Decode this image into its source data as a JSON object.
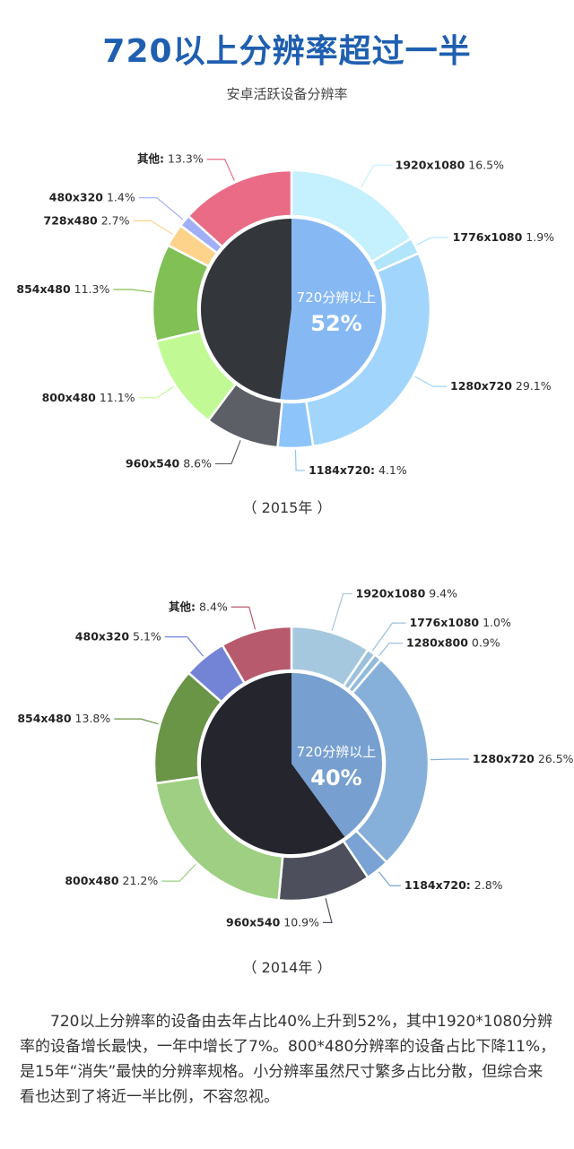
{
  "header": {
    "title": "720以上分辨率超过一半",
    "subtitle": "安卓活跃设备分辨率"
  },
  "chart_data": [
    {
      "type": "pie",
      "caption": "（ 2015年 ）",
      "inner_label": "720分辨以上",
      "inner_value": "52%",
      "inner_share": 52,
      "slices": [
        {
          "name": "1920x1080",
          "value": 16.5,
          "label": "16.5%",
          "color": "#c5f0fd"
        },
        {
          "name": "1776x1080",
          "value": 1.9,
          "label": "1.9%",
          "color": "#b1e5fb"
        },
        {
          "name": "1280x720",
          "value": 29.1,
          "label": "29.1%",
          "color": "#a2d5fb"
        },
        {
          "name": "1184x720:",
          "value": 4.1,
          "label": "4.1%",
          "color": "#8dc5fb"
        },
        {
          "name": "960x540",
          "value": 8.6,
          "label": "8.6%",
          "color": "#5c5f66"
        },
        {
          "name": "800x480",
          "value": 11.1,
          "label": "11.1%",
          "color": "#c1fa95"
        },
        {
          "name": "854x480",
          "value": 11.3,
          "label": "11.3%",
          "color": "#80c055"
        },
        {
          "name": "728x480",
          "value": 2.7,
          "label": "2.7%",
          "color": "#fdd38c"
        },
        {
          "name": "480x320",
          "value": 1.4,
          "label": "1.4%",
          "color": "#a1aef8"
        },
        {
          "name": "其他:",
          "value": 13.3,
          "label": "13.3%",
          "color": "#ea6b86"
        }
      ],
      "inner_colors": {
        "high": "#86b9f4",
        "low": "#33363b"
      }
    },
    {
      "type": "pie",
      "caption": "（ 2014年 ）",
      "inner_label": "720分辨以上",
      "inner_value": "40%",
      "inner_share": 40,
      "slices": [
        {
          "name": "1920x1080",
          "value": 9.4,
          "label": "9.4%",
          "color": "#a5c8de"
        },
        {
          "name": "1776x1080",
          "value": 1.0,
          "label": "1.0%",
          "color": "#9cc1dc"
        },
        {
          "name": "1280x800",
          "value": 0.9,
          "label": "0.9%",
          "color": "#92badb"
        },
        {
          "name": "1280x720",
          "value": 26.5,
          "label": "26.5%",
          "color": "#86b0d9"
        },
        {
          "name": "1184x720:",
          "value": 2.8,
          "label": "2.8%",
          "color": "#7aa2d4"
        },
        {
          "name": "960x540",
          "value": 10.9,
          "label": "10.9%",
          "color": "#4d4f5c"
        },
        {
          "name": "800x480",
          "value": 21.2,
          "label": "21.2%",
          "color": "#9ecf82"
        },
        {
          "name": "854x480",
          "value": 13.8,
          "label": "13.8%",
          "color": "#6a9446"
        },
        {
          "name": "480x320",
          "value": 5.1,
          "label": "5.1%",
          "color": "#7383d6"
        },
        {
          "name": "其他:",
          "value": 8.4,
          "label": "8.4%",
          "color": "#b85a6d"
        }
      ],
      "inner_colors": {
        "high": "#779fcf",
        "low": "#24252d"
      }
    }
  ],
  "description": "720以上分辨率的设备由去年占比40%上升到52%，其中1920*1080分辨率的设备增长最快，一年中增长了7%。800*480分辨率的设备占比下降11%，是15年“消失”最快的分辨率规格。小分辨率虽然尺寸繁多占比分散，但综合来看也达到了将近一半比例，不容忽视。"
}
